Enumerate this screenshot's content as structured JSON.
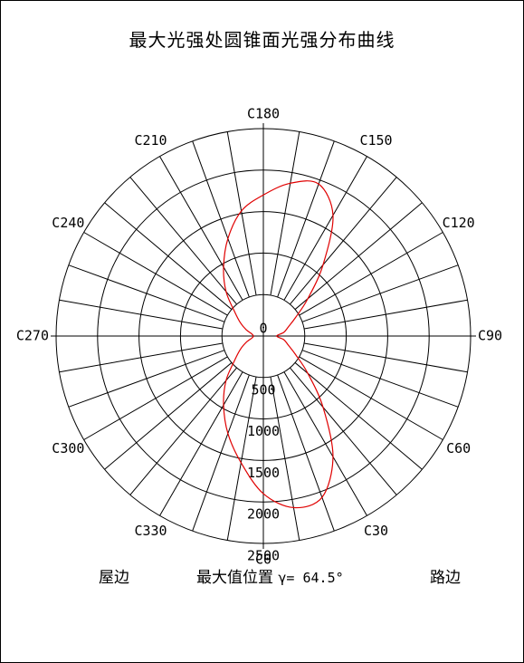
{
  "title": "最大光强处圆锥面光强分布曲线",
  "footer": {
    "left_label": "屋边",
    "center_label": "最大值位置",
    "gamma_label": "γ= 64.5°",
    "right_label": "路边"
  },
  "colors": {
    "curve": "#e00000",
    "grid": "#000000",
    "background": "#ffffff"
  },
  "chart_data": {
    "type": "polar",
    "title": "最大光强处圆锥面光强分布曲线",
    "radial_max": 2500,
    "radial_ticks": [
      0,
      500,
      1000,
      1500,
      2000,
      2500
    ],
    "radial_tick_labels": [
      "0",
      "500",
      "1000",
      "1500",
      "2000",
      "2500"
    ],
    "angle_step_deg": 10,
    "angular_labels": [
      {
        "angle": 0,
        "label": "C0"
      },
      {
        "angle": 30,
        "label": "C30"
      },
      {
        "angle": 60,
        "label": "C60"
      },
      {
        "angle": 90,
        "label": "C90"
      },
      {
        "angle": 120,
        "label": "C120"
      },
      {
        "angle": 150,
        "label": "C150"
      },
      {
        "angle": 180,
        "label": "C180"
      },
      {
        "angle": 210,
        "label": "C210"
      },
      {
        "angle": 240,
        "label": "C240"
      },
      {
        "angle": 270,
        "label": "C270"
      },
      {
        "angle": 300,
        "label": "C300"
      },
      {
        "angle": 330,
        "label": "C330"
      }
    ],
    "series": [
      {
        "C": [
          0,
          10,
          20,
          30,
          40,
          50,
          60,
          70,
          80,
          90,
          100,
          110,
          120,
          130,
          140,
          150,
          160,
          170,
          180,
          190,
          200,
          210,
          220,
          230,
          240,
          250,
          260,
          270,
          280,
          290,
          300,
          310,
          320,
          330,
          340,
          350
        ],
        "I": [
          1900,
          2100,
          2070,
          1680,
          1120,
          700,
          450,
          320,
          250,
          160,
          250,
          320,
          450,
          700,
          1120,
          1680,
          1950,
          1870,
          1700,
          1530,
          1250,
          960,
          700,
          450,
          320,
          220,
          140,
          120,
          140,
          220,
          320,
          450,
          700,
          960,
          1250,
          1550
        ]
      }
    ]
  }
}
